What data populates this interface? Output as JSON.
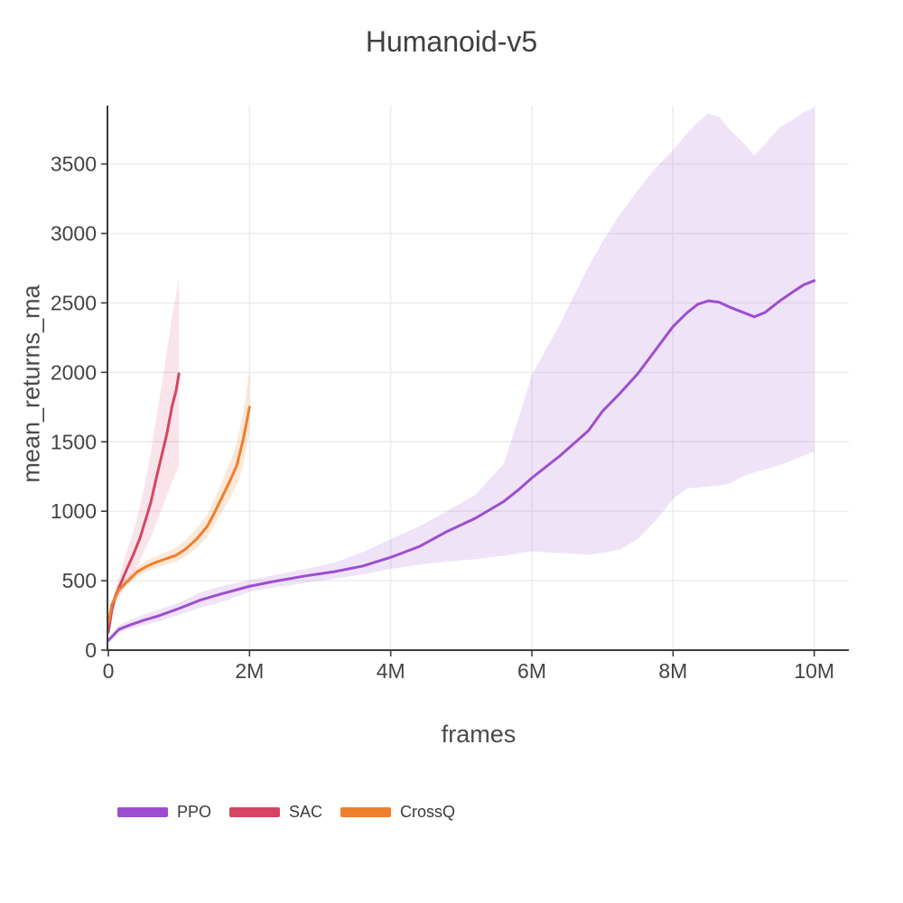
{
  "chart_data": {
    "type": "line",
    "title": "Humanoid-v5",
    "xlabel": "frames",
    "ylabel": "mean_returns_ma",
    "xlim": [
      0,
      10.49
    ],
    "ylim": [
      0,
      3920
    ],
    "x_unit": "millions of frames",
    "grid": true,
    "legend_position": "bottom-left",
    "x_ticks": {
      "values": [
        0,
        2,
        4,
        6,
        8,
        10
      ],
      "labels": [
        "0",
        "2M",
        "4M",
        "6M",
        "8M",
        "10M"
      ]
    },
    "y_ticks": {
      "values": [
        0,
        500,
        1000,
        1500,
        2000,
        2500,
        3000,
        3500
      ],
      "labels": [
        "0",
        "500",
        "1000",
        "1500",
        "2000",
        "2500",
        "3000",
        "3500"
      ]
    },
    "series": [
      {
        "name": "PPO",
        "color": "#9d4ed0",
        "band_color": "rgba(157,78,208,0.16)",
        "x": [
          0,
          0.15,
          0.3,
          0.5,
          0.7,
          1.0,
          1.3,
          1.6,
          2.0,
          2.4,
          2.8,
          3.2,
          3.6,
          4.0,
          4.4,
          4.8,
          5.2,
          5.6,
          5.8,
          6.0,
          6.4,
          6.8,
          7.0,
          7.25,
          7.5,
          7.75,
          8.0,
          8.2,
          8.35,
          8.5,
          8.65,
          8.8,
          9.0,
          9.15,
          9.3,
          9.5,
          9.7,
          9.85,
          10.0
        ],
        "y": [
          70,
          150,
          180,
          215,
          245,
          300,
          360,
          405,
          460,
          500,
          535,
          565,
          605,
          668,
          745,
          855,
          950,
          1070,
          1150,
          1240,
          1400,
          1580,
          1720,
          1850,
          1990,
          2160,
          2330,
          2430,
          2490,
          2515,
          2505,
          2470,
          2430,
          2400,
          2430,
          2510,
          2580,
          2630,
          2660
        ],
        "y_lower": [
          60,
          125,
          150,
          180,
          205,
          255,
          305,
          345,
          420,
          455,
          485,
          515,
          545,
          585,
          615,
          638,
          655,
          680,
          695,
          712,
          700,
          688,
          700,
          725,
          800,
          930,
          1090,
          1165,
          1172,
          1178,
          1185,
          1200,
          1255,
          1280,
          1300,
          1330,
          1370,
          1400,
          1430
        ],
        "y_upper": [
          80,
          180,
          215,
          255,
          290,
          340,
          415,
          460,
          505,
          545,
          585,
          630,
          705,
          800,
          890,
          1000,
          1120,
          1340,
          1650,
          1980,
          2350,
          2760,
          2940,
          3140,
          3310,
          3470,
          3600,
          3720,
          3800,
          3865,
          3840,
          3750,
          3650,
          3560,
          3640,
          3760,
          3820,
          3870,
          3905
        ]
      },
      {
        "name": "SAC",
        "color": "#d64561",
        "band_color": "rgba(214,69,97,0.14)",
        "x": [
          0,
          0.05,
          0.1,
          0.17,
          0.25,
          0.36,
          0.45,
          0.51,
          0.6,
          0.68,
          0.75,
          0.83,
          0.9,
          0.96,
          1.0
        ],
        "y": [
          130,
          290,
          390,
          475,
          570,
          695,
          810,
          910,
          1060,
          1240,
          1390,
          1560,
          1750,
          1870,
          1990
        ],
        "y_lower": [
          115,
          255,
          335,
          400,
          470,
          560,
          645,
          715,
          810,
          920,
          1010,
          1110,
          1210,
          1280,
          1330
        ],
        "y_upper": [
          145,
          330,
          450,
          560,
          690,
          870,
          1040,
          1180,
          1420,
          1680,
          1890,
          2150,
          2400,
          2560,
          2670
        ]
      },
      {
        "name": "CrossQ",
        "color": "#ee7f2d",
        "band_color": "rgba(238,127,45,0.18)",
        "x": [
          0,
          0.05,
          0.15,
          0.3,
          0.41,
          0.55,
          0.66,
          0.8,
          0.96,
          1.1,
          1.25,
          1.4,
          1.49,
          1.6,
          1.72,
          1.82,
          1.91,
          2.0
        ],
        "y": [
          195,
          330,
          435,
          510,
          565,
          605,
          630,
          655,
          683,
          730,
          800,
          890,
          976,
          1090,
          1216,
          1330,
          1516,
          1750
        ],
        "y_lower": [
          185,
          310,
          410,
          480,
          530,
          567,
          590,
          612,
          638,
          675,
          735,
          815,
          890,
          985,
          1090,
          1185,
          1330,
          1570
        ],
        "y_upper": [
          205,
          350,
          465,
          545,
          600,
          645,
          672,
          700,
          740,
          795,
          875,
          975,
          1075,
          1200,
          1345,
          1490,
          1710,
          2010
        ]
      }
    ],
    "style": {
      "grid_color": "#ebebeb",
      "axis_color": "#3c3c3c",
      "tick_label_color": "#444444",
      "title_color": "#3f3f3f"
    }
  }
}
